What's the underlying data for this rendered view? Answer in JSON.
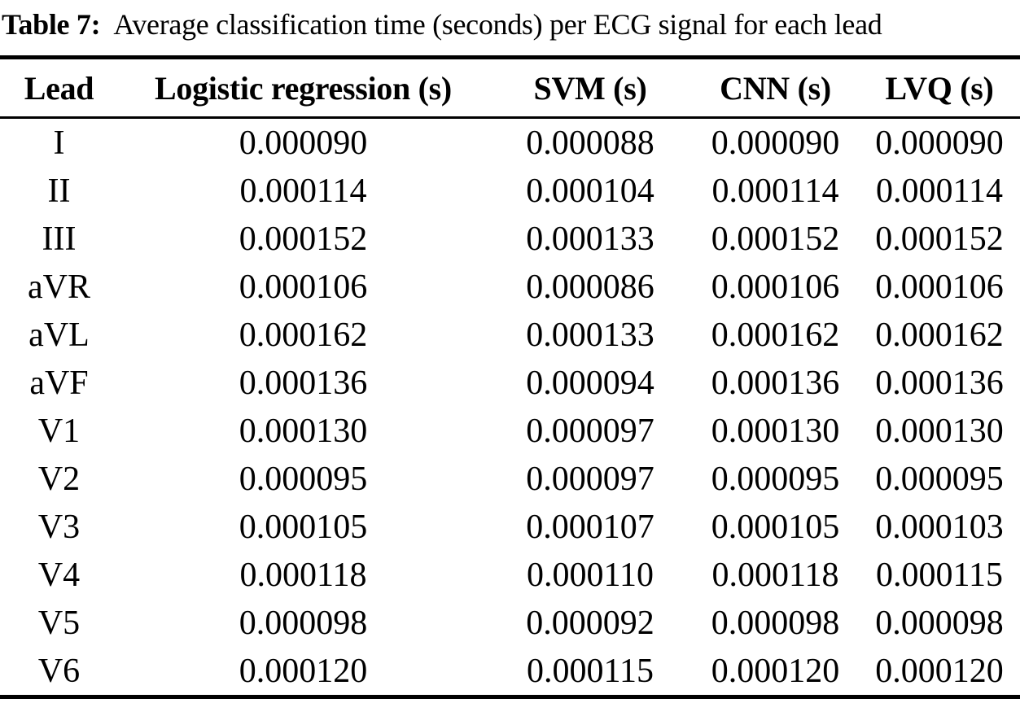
{
  "caption": {
    "label": "Table 7:",
    "text": "Average classification time (seconds) per ECG signal for each lead"
  },
  "colors": {
    "text": "#000000",
    "background": "#ffffff",
    "rule": "#000000"
  },
  "table": {
    "columns": [
      "Lead",
      "Logistic regression (s)",
      "SVM (s)",
      "CNN (s)",
      "LVQ (s)"
    ],
    "rows": [
      {
        "lead": "I",
        "values": [
          "0.000090",
          "0.000088",
          "0.000090",
          "0.000090"
        ]
      },
      {
        "lead": "II",
        "values": [
          "0.000114",
          "0.000104",
          "0.000114",
          "0.000114"
        ]
      },
      {
        "lead": "III",
        "values": [
          "0.000152",
          "0.000133",
          "0.000152",
          "0.000152"
        ]
      },
      {
        "lead": "aVR",
        "values": [
          "0.000106",
          "0.000086",
          "0.000106",
          "0.000106"
        ]
      },
      {
        "lead": "aVL",
        "values": [
          "0.000162",
          "0.000133",
          "0.000162",
          "0.000162"
        ]
      },
      {
        "lead": "aVF",
        "values": [
          "0.000136",
          "0.000094",
          "0.000136",
          "0.000136"
        ]
      },
      {
        "lead": "V1",
        "values": [
          "0.000130",
          "0.000097",
          "0.000130",
          "0.000130"
        ]
      },
      {
        "lead": "V2",
        "values": [
          "0.000095",
          "0.000097",
          "0.000095",
          "0.000095"
        ]
      },
      {
        "lead": "V3",
        "values": [
          "0.000105",
          "0.000107",
          "0.000105",
          "0.000103"
        ]
      },
      {
        "lead": "V4",
        "values": [
          "0.000118",
          "0.000110",
          "0.000118",
          "0.000115"
        ]
      },
      {
        "lead": "V5",
        "values": [
          "0.000098",
          "0.000092",
          "0.000098",
          "0.000098"
        ]
      },
      {
        "lead": "V6",
        "values": [
          "0.000120",
          "0.000115",
          "0.000120",
          "0.000120"
        ]
      }
    ]
  }
}
